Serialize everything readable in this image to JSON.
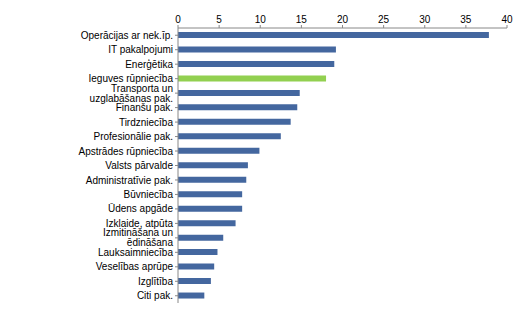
{
  "chart_data": {
    "type": "bar",
    "orientation": "horizontal",
    "categories": [
      "Operācijas ar nek.īp.",
      "IT pakalpojumi",
      "Enerģētika",
      "Ieguves rūpniecība",
      "Transporta un uzglabāšanas pak.",
      "Finanšu pak.",
      "Tirdzniecība",
      "Profesionālie pak.",
      "Apstrādes rūpniecība",
      "Valsts pārvalde",
      "Administratīvie pak.",
      "Būvniecība",
      "Ūdens apgāde",
      "Izklaide, atpūta",
      "Izmitināšana un ēdināšana",
      "Lauksaimniecība",
      "Veselības aprūpe",
      "Izglītība",
      "Citi pak."
    ],
    "values": [
      37.8,
      19.2,
      19.0,
      18.0,
      14.8,
      14.5,
      13.7,
      12.5,
      9.9,
      8.5,
      8.3,
      7.8,
      7.8,
      7.0,
      5.5,
      4.8,
      4.4,
      4.0,
      3.2
    ],
    "colors": [
      "#44679f",
      "#44679f",
      "#44679f",
      "#92d050",
      "#44679f",
      "#44679f",
      "#44679f",
      "#44679f",
      "#44679f",
      "#44679f",
      "#44679f",
      "#44679f",
      "#44679f",
      "#44679f",
      "#44679f",
      "#44679f",
      "#44679f",
      "#44679f",
      "#44679f"
    ],
    "ylim": [
      0,
      40
    ],
    "yticks": [
      0,
      5,
      10,
      15,
      20,
      25,
      30,
      35,
      40
    ],
    "grid": false
  }
}
